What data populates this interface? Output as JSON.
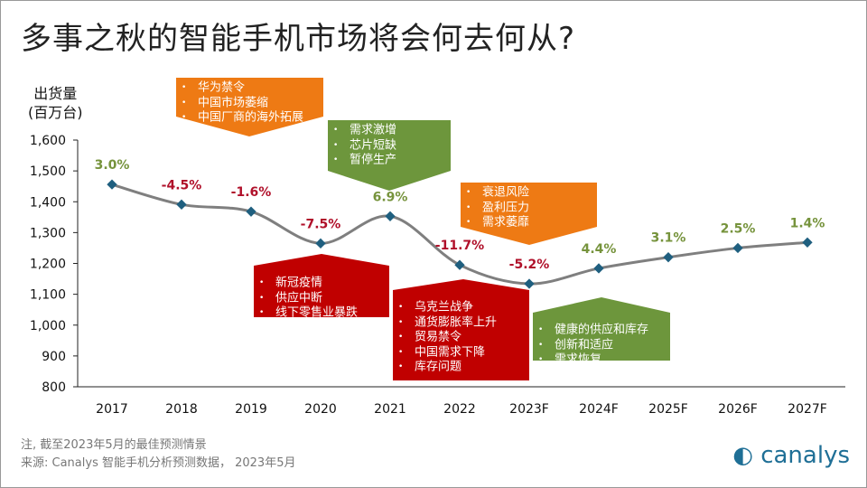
{
  "title": "多事之秋的智能手机市场将会何去何从?",
  "ylabel_line1": "出货量",
  "ylabel_line2": "(百万台)",
  "colors": {
    "positive": "#76933c",
    "negative": "#b0102a",
    "line": "#7f7f7f",
    "marker": "#1f5f7f",
    "orange": "#ee7a14",
    "green": "#6d963c",
    "red": "#c00000"
  },
  "chart_data": {
    "type": "line",
    "categories": [
      "2017",
      "2018",
      "2019",
      "2020",
      "2021",
      "2022",
      "2023F",
      "2024F",
      "2025F",
      "2026F",
      "2027F"
    ],
    "values": [
      1456,
      1391,
      1368,
      1265,
      1353,
      1195,
      1134,
      1184,
      1220,
      1250,
      1268
    ],
    "growth_labels": [
      "3.0%",
      "-4.5%",
      "-1.6%",
      "-7.5%",
      "6.9%",
      "-11.7%",
      "-5.2%",
      "4.4%",
      "3.1%",
      "2.5%",
      "1.4%"
    ],
    "ylim": [
      800,
      1600
    ],
    "yticks": [
      "800",
      "900",
      "1,000",
      "1,100",
      "1,200",
      "1,300",
      "1,400",
      "1,500",
      "1,600"
    ],
    "grid": false
  },
  "callouts": [
    {
      "color": "orange",
      "items": [
        "华为禁令",
        "中国市场萎缩",
        "中国厂商的海外拓展"
      ]
    },
    {
      "color": "green",
      "items": [
        "需求激增",
        "芯片短缺",
        "暂停生产"
      ]
    },
    {
      "color": "orange",
      "items": [
        "衰退风险",
        "盈利压力",
        "需求萎靡"
      ]
    },
    {
      "color": "red",
      "items": [
        "新冠疫情",
        "供应中断",
        "线下零售业暴跌"
      ]
    },
    {
      "color": "red",
      "items": [
        "乌克兰战争",
        "通货膨胀率上升",
        "贸易禁令",
        "中国需求下降",
        "库存问题"
      ]
    },
    {
      "color": "green",
      "items": [
        "健康的供应和库存",
        "创新和适应",
        "需求恢复"
      ]
    }
  ],
  "note": "注, 截至2023年5月的最佳预测情景",
  "source": "来源: Canalys 智能手机分析预测数据， 2023年5月",
  "logo": "canalys"
}
